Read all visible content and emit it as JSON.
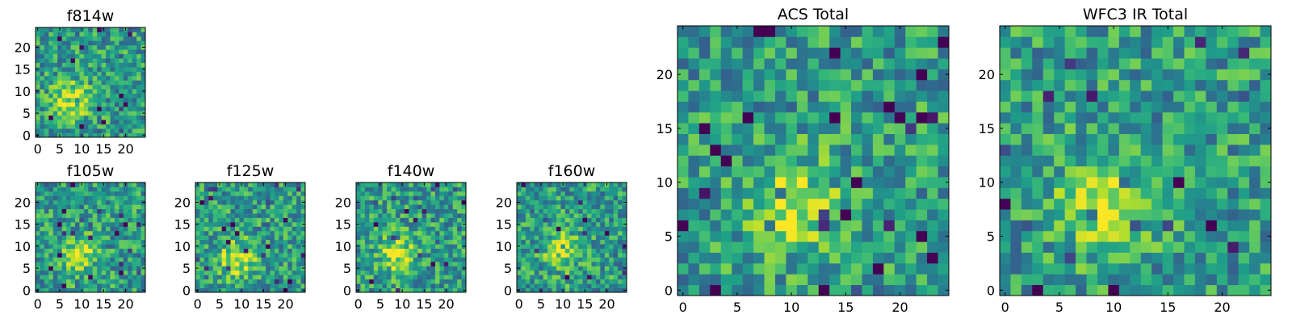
{
  "figure_title": "",
  "chart_data": [
    {
      "type": "heatmap",
      "title": "f814w",
      "grid": [
        25,
        25
      ],
      "colormap": "viridis",
      "xticks": [
        0,
        5,
        10,
        15,
        20
      ],
      "yticks": [
        0,
        5,
        10,
        15,
        20
      ],
      "xlim": [
        0,
        25
      ],
      "ylim": [
        0,
        25
      ],
      "blob": [
        8,
        8
      ],
      "seed": 11
    },
    {
      "type": "heatmap",
      "title": "f105w",
      "grid": [
        25,
        25
      ],
      "colormap": "viridis",
      "xticks": [
        0,
        5,
        10,
        15,
        20
      ],
      "yticks": [
        0,
        5,
        10,
        15,
        20
      ],
      "xlim": [
        0,
        25
      ],
      "ylim": [
        0,
        25
      ],
      "blob": [
        9,
        8
      ],
      "seed": 23
    },
    {
      "type": "heatmap",
      "title": "f125w",
      "grid": [
        25,
        25
      ],
      "colormap": "viridis",
      "xticks": [
        0,
        5,
        10,
        15,
        20
      ],
      "yticks": [
        0,
        5,
        10,
        15,
        20
      ],
      "xlim": [
        0,
        25
      ],
      "ylim": [
        0,
        25
      ],
      "blob": [
        9,
        7
      ],
      "seed": 37
    },
    {
      "type": "heatmap",
      "title": "f140w",
      "grid": [
        25,
        25
      ],
      "colormap": "viridis",
      "xticks": [
        0,
        5,
        10,
        15,
        20
      ],
      "yticks": [
        0,
        5,
        10,
        15,
        20
      ],
      "xlim": [
        0,
        25
      ],
      "ylim": [
        0,
        25
      ],
      "blob": [
        9,
        8
      ],
      "seed": 41
    },
    {
      "type": "heatmap",
      "title": "f160w",
      "grid": [
        25,
        25
      ],
      "colormap": "viridis",
      "xticks": [
        0,
        5,
        10,
        15,
        20
      ],
      "yticks": [
        0,
        5,
        10,
        15,
        20
      ],
      "xlim": [
        0,
        25
      ],
      "ylim": [
        0,
        25
      ],
      "blob": [
        10,
        9
      ],
      "seed": 53
    },
    {
      "type": "heatmap",
      "title": "ACS Total",
      "grid": [
        25,
        25
      ],
      "colormap": "viridis",
      "xticks": [
        0,
        5,
        10,
        15,
        20
      ],
      "yticks": [
        0,
        5,
        10,
        15,
        20
      ],
      "xlim": [
        0,
        25
      ],
      "ylim": [
        0,
        25
      ],
      "blob": [
        10,
        8
      ],
      "seed": 67
    },
    {
      "type": "heatmap",
      "title": "WFC3 IR Total",
      "grid": [
        25,
        25
      ],
      "colormap": "viridis",
      "xticks": [
        0,
        5,
        10,
        15,
        20
      ],
      "yticks": [
        0,
        5,
        10,
        15,
        20
      ],
      "xlim": [
        0,
        25
      ],
      "ylim": [
        0,
        25
      ],
      "blob": [
        9,
        8
      ],
      "seed": 79
    }
  ]
}
